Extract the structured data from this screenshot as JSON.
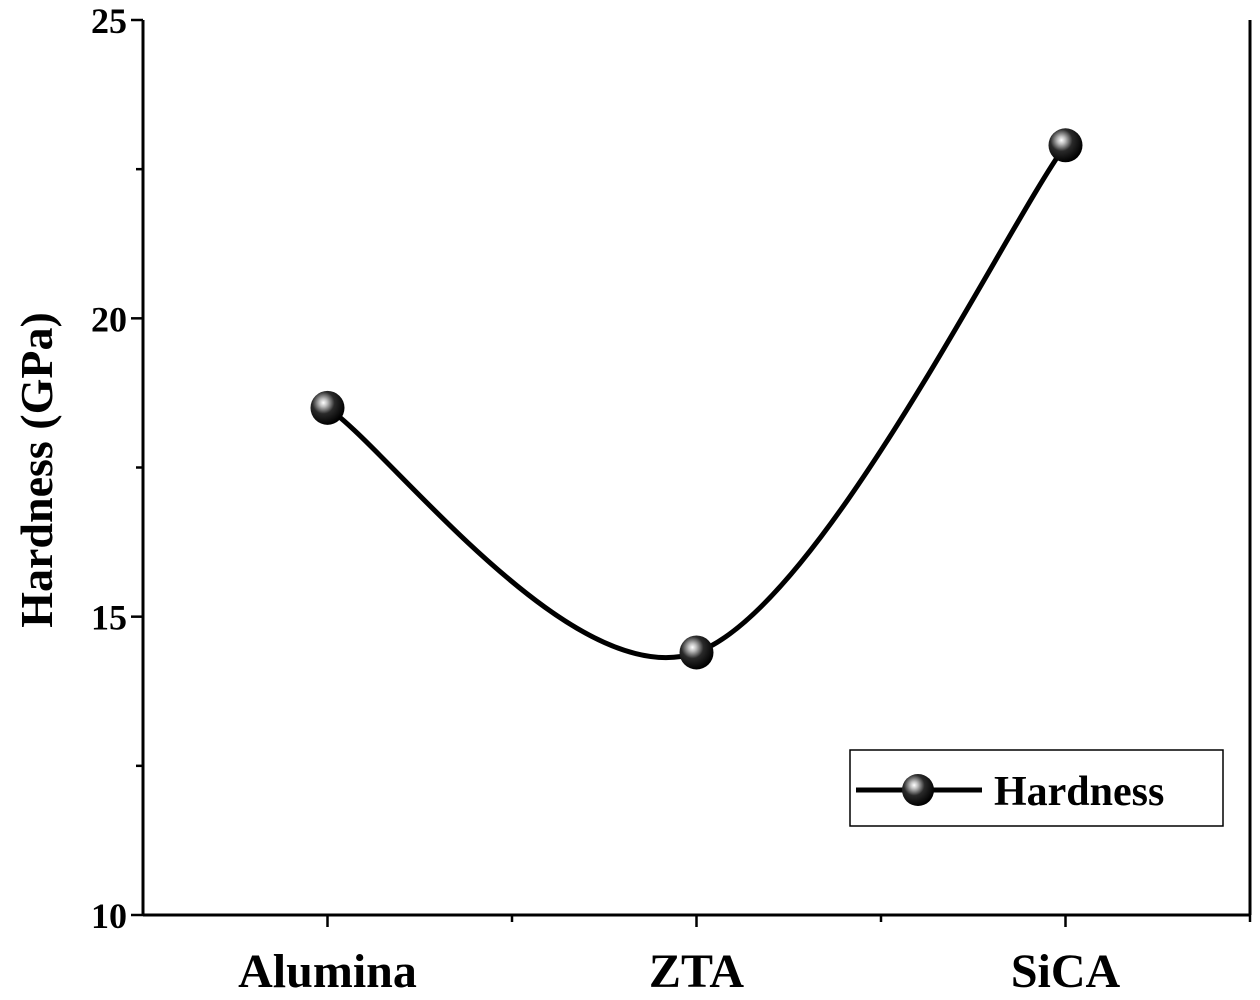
{
  "chart_data": {
    "type": "line",
    "categories": [
      "Alumina",
      "ZTA",
      "SiCA"
    ],
    "series": [
      {
        "name": "Hardness",
        "values": [
          18.5,
          14.4,
          22.9
        ]
      }
    ],
    "title": "",
    "xlabel": "",
    "ylabel": "Hardness (GPa)",
    "ylim": [
      10,
      25
    ],
    "yticks": [
      10,
      15,
      20,
      25
    ],
    "y_minor_step": 2.5,
    "grid": false,
    "smooth": true,
    "legend": {
      "position": "bottom-right"
    },
    "line_color": "#000000",
    "marker": "sphere"
  }
}
